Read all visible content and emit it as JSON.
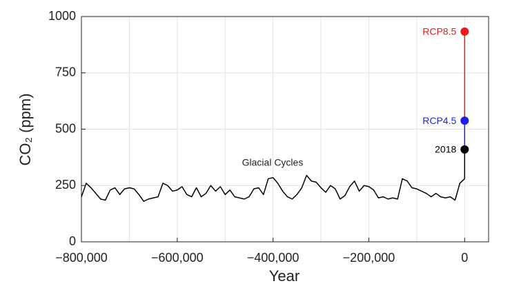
{
  "chart_data": {
    "type": "line",
    "xlabel": "Year",
    "ylabel": "CO₂ (ppm)",
    "annotation": "Glacial Cycles",
    "xlim": [
      -800000,
      50000
    ],
    "ylim": [
      0,
      1000
    ],
    "xticks": [
      {
        "value": -800000,
        "label": "−800,000"
      },
      {
        "value": -600000,
        "label": "−600,000"
      },
      {
        "value": -400000,
        "label": "−400,000"
      },
      {
        "value": -200000,
        "label": "−200,000"
      },
      0
    ],
    "xgrid": [
      -700000,
      -500000,
      -300000,
      -100000
    ],
    "yticks": [
      0,
      250,
      500,
      750,
      1000
    ],
    "grid": true,
    "series": [
      {
        "color": "#000000",
        "x": [
          -800000,
          -790000,
          -780000,
          -770000,
          -760000,
          -750000,
          -740000,
          -730000,
          -720000,
          -710000,
          -700000,
          -690000,
          -680000,
          -670000,
          -660000,
          -650000,
          -640000,
          -630000,
          -620000,
          -610000,
          -600000,
          -590000,
          -580000,
          -570000,
          -560000,
          -550000,
          -540000,
          -530000,
          -520000,
          -510000,
          -500000,
          -490000,
          -480000,
          -470000,
          -460000,
          -450000,
          -440000,
          -430000,
          -420000,
          -410000,
          -400000,
          -390000,
          -380000,
          -370000,
          -360000,
          -350000,
          -340000,
          -330000,
          -320000,
          -310000,
          -300000,
          -290000,
          -280000,
          -270000,
          -260000,
          -250000,
          -240000,
          -230000,
          -220000,
          -210000,
          -200000,
          -190000,
          -180000,
          -170000,
          -160000,
          -150000,
          -140000,
          -130000,
          -120000,
          -110000,
          -100000,
          -90000,
          -80000,
          -70000,
          -60000,
          -50000,
          -40000,
          -30000,
          -20000,
          -10000,
          0
        ],
        "values": [
          200,
          260,
          240,
          215,
          190,
          185,
          230,
          240,
          210,
          235,
          240,
          235,
          210,
          180,
          190,
          195,
          200,
          260,
          250,
          225,
          230,
          245,
          210,
          200,
          240,
          200,
          215,
          250,
          225,
          245,
          210,
          230,
          200,
          195,
          190,
          200,
          235,
          240,
          210,
          280,
          285,
          260,
          225,
          200,
          190,
          210,
          240,
          295,
          270,
          265,
          240,
          220,
          250,
          235,
          190,
          205,
          245,
          270,
          225,
          250,
          245,
          230,
          195,
          200,
          190,
          195,
          190,
          280,
          270,
          240,
          235,
          225,
          215,
          200,
          215,
          200,
          195,
          200,
          185,
          260,
          280
        ]
      }
    ],
    "points": [
      {
        "label": "2018",
        "x": 0,
        "value": 410,
        "color": "#000000"
      },
      {
        "label": "RCP4.5",
        "x": 0,
        "value": 538,
        "color": "#1f1fe6"
      },
      {
        "label": "RCP8.5",
        "x": 0,
        "value": 933,
        "color": "#e61c1c"
      }
    ]
  }
}
